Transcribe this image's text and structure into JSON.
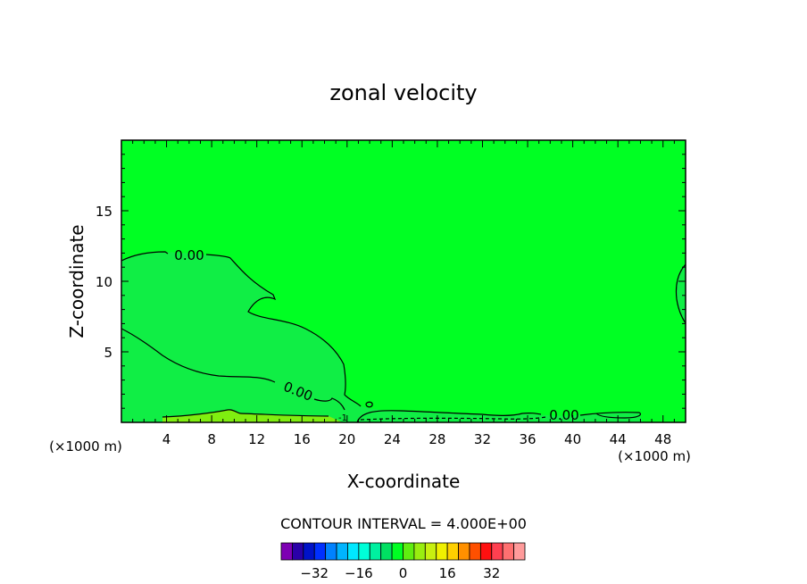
{
  "chart_data": {
    "type": "contour",
    "title": "zonal velocity",
    "xlabel": "X-coordinate",
    "ylabel": "Z-coordinate",
    "x_unit_left": "(×1000 m)",
    "x_unit_right": "(×1000 m)",
    "xlim": [
      0,
      50
    ],
    "ylim": [
      0,
      20
    ],
    "x_ticks": [
      4,
      8,
      12,
      16,
      20,
      24,
      28,
      32,
      36,
      40,
      44,
      48
    ],
    "y_ticks": [
      5,
      10,
      15
    ],
    "contour_interval_text": "CONTOUR INTERVAL = 4.000E+00",
    "contour_labels": [
      {
        "text": "0.00",
        "x": 6.0,
        "z": 11.7
      },
      {
        "text": "0.00",
        "x": 15.5,
        "z": 2.2
      },
      {
        "text": "0.00",
        "x": 39.5,
        "z": 0.4
      },
      {
        "text": "-1",
        "x": 20.0,
        "z": 0.3
      }
    ],
    "fill_colors": {
      "background": "#00ff23",
      "positive_region": "#10ee45",
      "weak_band": "#7fee10"
    },
    "colorbar": {
      "colors": [
        "#7d00b3",
        "#2a00a8",
        "#0012c8",
        "#0030ff",
        "#0082ff",
        "#00b4ff",
        "#00e8ff",
        "#00ffd8",
        "#00f0a0",
        "#00e062",
        "#00ff23",
        "#5fee10",
        "#99ee10",
        "#c8f010",
        "#f0f000",
        "#ffd000",
        "#ff9000",
        "#ff5000",
        "#ff1010",
        "#ff4050",
        "#ff7070",
        "#ff9b9b"
      ],
      "tick_labels": [
        -32,
        -16,
        0,
        16,
        32
      ]
    }
  }
}
